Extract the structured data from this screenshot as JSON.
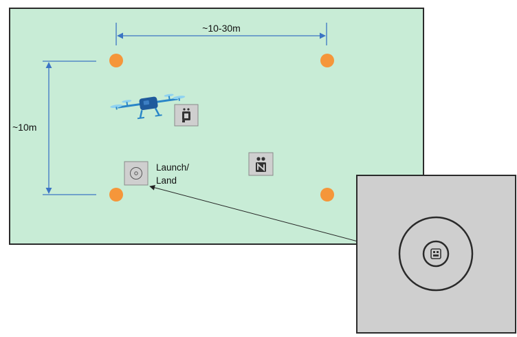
{
  "diagram": {
    "labels": {
      "width_dimension": "~10-30m",
      "height_dimension": "~10m",
      "launch_line1": "Launch/",
      "launch_line2": "Land"
    },
    "icons": [
      "drone-icon",
      "marker-icon",
      "landing-pad-icon",
      "tag-icon"
    ],
    "colors": {
      "field": "#c8ecd6",
      "cone": "#f5963a",
      "dimension_line": "#3b74c4",
      "pad": "#cfcfcf",
      "drone": "#2a86c8"
    }
  }
}
